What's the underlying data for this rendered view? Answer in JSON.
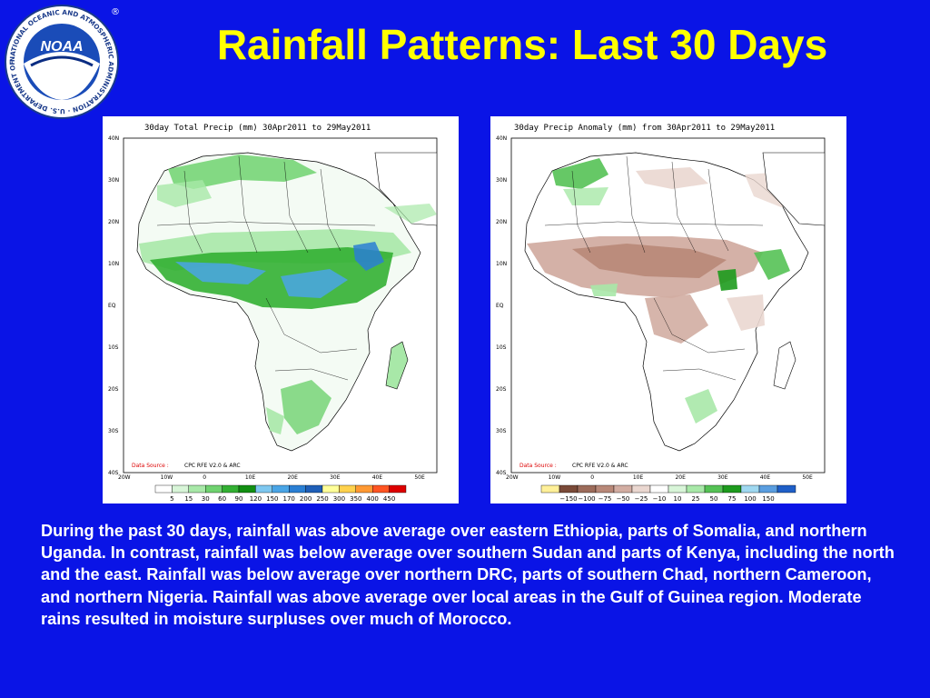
{
  "slide": {
    "title": "Rainfall Patterns: Last 30 Days",
    "logo": {
      "ring_text": "NATIONAL OCEANIC AND ATMOSPHERIC ADMINISTRATION · U.S. DEPARTMENT OF COMMERCE",
      "center_text": "NOAA",
      "registered_mark": "®"
    },
    "description": "During the past 30 days, rainfall was above average over eastern Ethiopia, parts of Somalia, and northern Uganda.  In contrast, rainfall was below average over southern Sudan and parts of Kenya, including the north and the east.  Rainfall was below average over northern DRC, parts of southern Chad, northern Cameroon, and northern Nigeria.  Rainfall was above average over local areas in the Gulf of Guinea region.  Moderate rains resulted in moisture surpluses over much of Morocco."
  },
  "maps": {
    "total": {
      "title": "30day Total Precip (mm)    30Apr2011 to 29May2011",
      "source_label": "Data Source :",
      "source_value": "CPC RFE V2.0 & ARC",
      "colorbar_labels": [
        "5",
        "15",
        "30",
        "60",
        "90",
        "120",
        "150",
        "170",
        "200",
        "250",
        "300",
        "350",
        "400",
        "450"
      ],
      "colorbar_colors": [
        "#ffffff",
        "#d8f5d8",
        "#a8e8a8",
        "#6fd26f",
        "#33b033",
        "#128f12",
        "#7ec8f0",
        "#4aa5e6",
        "#2a7fd4",
        "#1f5fb8",
        "#ffff99",
        "#ffd24d",
        "#ff9933",
        "#ff5522",
        "#dd0000"
      ]
    },
    "anomaly": {
      "title": "30day Precip Anomaly (mm) from 30Apr2011 to 29May2011",
      "source_label": "Data Source :",
      "source_value": "CPC RFE V2.0 & ARC",
      "colorbar_labels": [
        "−150",
        "−100",
        "−75",
        "−50",
        "−25",
        "−10",
        "10",
        "25",
        "50",
        "75",
        "100",
        "150"
      ],
      "colorbar_colors": [
        "#fff099",
        "#7a4a38",
        "#9c6b5a",
        "#b88878",
        "#d2ada2",
        "#ead7d0",
        "#ffffff",
        "#d8f5d8",
        "#a8e8a8",
        "#55c255",
        "#1d9b1d",
        "#9fd8f0",
        "#5a9ee0",
        "#1f5fc8"
      ]
    },
    "lat_labels": [
      "40N",
      "30N",
      "20N",
      "10N",
      "EQ",
      "10S",
      "20S",
      "30S",
      "40S"
    ],
    "lon_labels": [
      "20W",
      "10W",
      "0",
      "10E",
      "20E",
      "30E",
      "40E",
      "50E"
    ]
  }
}
